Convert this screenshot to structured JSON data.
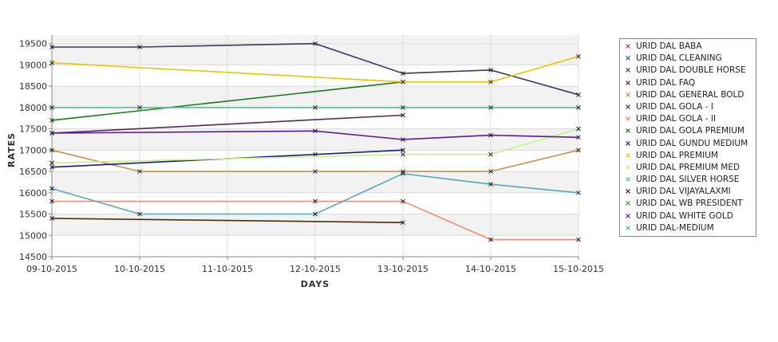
{
  "chart_data": {
    "type": "line",
    "xlabel": "DAYS",
    "ylabel": "RATES",
    "ylim": [
      14500,
      19700
    ],
    "yticks": [
      14500,
      15000,
      15500,
      16000,
      16500,
      17000,
      17500,
      18000,
      18500,
      19000,
      19500
    ],
    "grid": true,
    "legend_position": "right",
    "categories": [
      "09-10-2015",
      "10-10-2015",
      "11-10-2015",
      "12-10-2015",
      "13-10-2015",
      "14-10-2015",
      "15-10-2015"
    ],
    "series": [
      {
        "name": "URID DAL BABA",
        "color": "#9b3a8a",
        "points": []
      },
      {
        "name": "URID DAL CLEANING",
        "color": "#2a5f8a",
        "points": []
      },
      {
        "name": "URID DAL DOUBLE HORSE",
        "color": "#3a3a5a",
        "points": [
          [
            0,
            19420
          ],
          [
            1,
            19420
          ],
          [
            3,
            19500
          ],
          [
            4,
            18800
          ],
          [
            5,
            18880
          ],
          [
            6,
            18300
          ]
        ]
      },
      {
        "name": "URID DAL FAQ",
        "color": "#4a3010",
        "points": [
          [
            0,
            15400
          ],
          [
            4,
            15300
          ]
        ]
      },
      {
        "name": "URID DAL GENERAL BOLD",
        "color": "#c8914a",
        "points": [
          [
            0,
            17000
          ],
          [
            1,
            16500
          ],
          [
            3,
            16500
          ],
          [
            4,
            16500
          ],
          [
            5,
            16500
          ],
          [
            6,
            17000
          ]
        ]
      },
      {
        "name": "URID DAL GOLA - I",
        "color": "#552a5a",
        "points": [
          [
            0,
            17400
          ],
          [
            4,
            17820
          ]
        ]
      },
      {
        "name": "URID DAL GOLA - II",
        "color": "#f08a70",
        "points": [
          [
            0,
            15800
          ],
          [
            3,
            15800
          ],
          [
            4,
            15800
          ],
          [
            5,
            14900
          ],
          [
            6,
            14900
          ]
        ]
      },
      {
        "name": "URID DAL GOLA PREMIUM",
        "color": "#1a7a1a",
        "points": [
          [
            0,
            17700
          ],
          [
            4,
            18600
          ]
        ]
      },
      {
        "name": "URID DAL GUNDU MEDIUM",
        "color": "#1a1a80",
        "points": [
          [
            0,
            16600
          ],
          [
            3,
            16900
          ],
          [
            4,
            17000
          ]
        ]
      },
      {
        "name": "URID DAL PREMIUM",
        "color": "#e8c800",
        "points": [
          [
            0,
            19050
          ],
          [
            4,
            18600
          ],
          [
            5,
            18600
          ],
          [
            6,
            19200
          ]
        ]
      },
      {
        "name": "URID DAL PREMIUM MED",
        "color": "#c8f088",
        "points": [
          [
            0,
            16700
          ],
          [
            4,
            16900
          ],
          [
            5,
            16900
          ],
          [
            6,
            17500
          ]
        ]
      },
      {
        "name": "URID DAL SILVER HORSE",
        "color": "#5ab89a",
        "points": [
          [
            0,
            18000
          ],
          [
            1,
            18000
          ],
          [
            3,
            18000
          ],
          [
            4,
            18000
          ],
          [
            5,
            18000
          ],
          [
            6,
            18000
          ]
        ]
      },
      {
        "name": "URID DAL VIJAYALAXMI",
        "color": "#600a2a",
        "points": []
      },
      {
        "name": "URID DAL WB PRESIDENT",
        "color": "#4a9a1a",
        "points": []
      },
      {
        "name": "URID DAL WHITE GOLD",
        "color": "#5a1aa0",
        "points": [
          [
            0,
            17400
          ],
          [
            3,
            17450
          ],
          [
            4,
            17250
          ],
          [
            5,
            17350
          ],
          [
            6,
            17300
          ]
        ]
      },
      {
        "name": "URID DAL-MEDIUM",
        "color": "#5aa8b0",
        "points": [
          [
            0,
            16100
          ],
          [
            1,
            15500
          ],
          [
            3,
            15500
          ],
          [
            4,
            16450
          ],
          [
            5,
            16200
          ],
          [
            6,
            16000
          ]
        ]
      }
    ]
  }
}
